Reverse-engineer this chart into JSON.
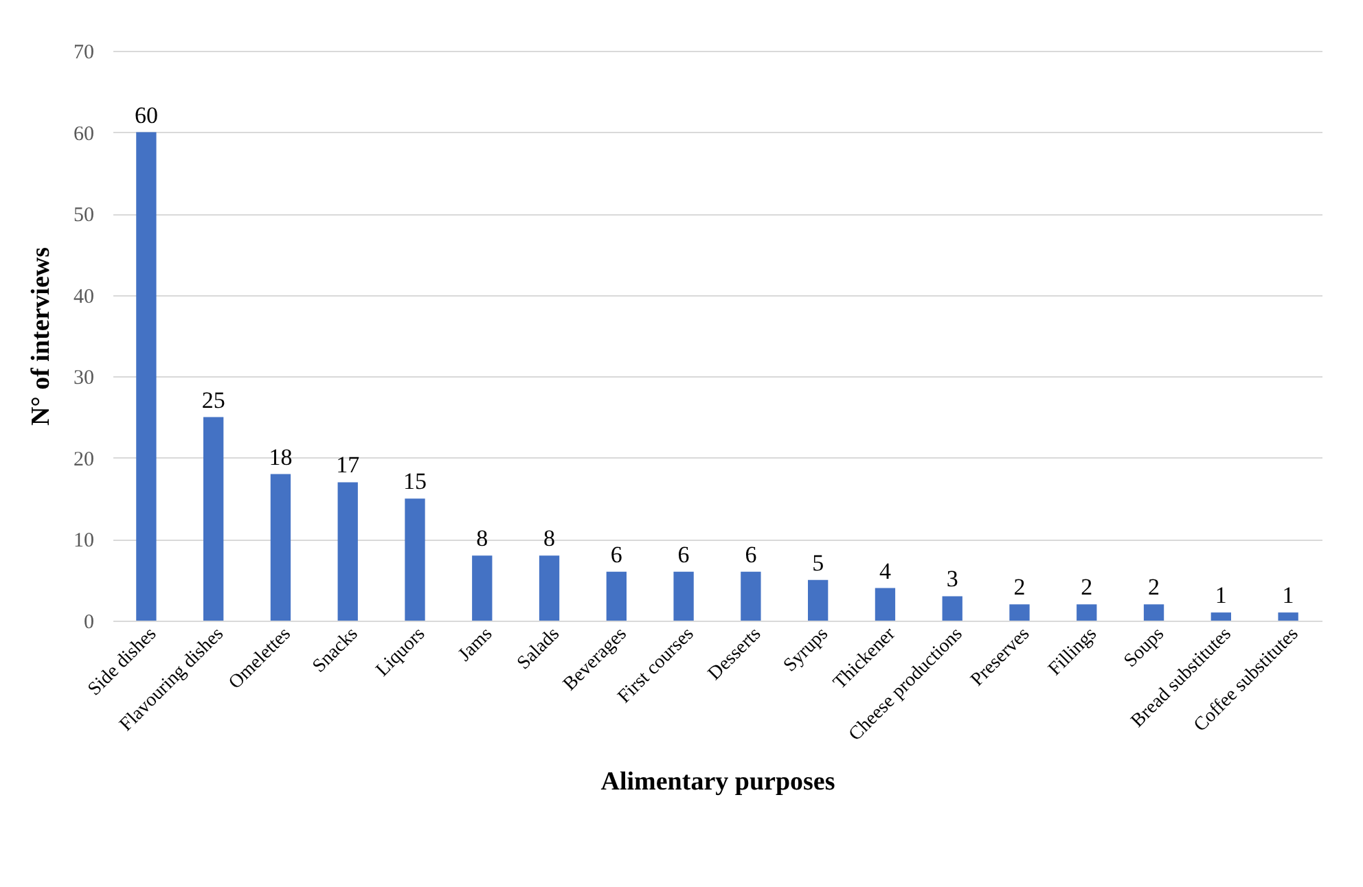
{
  "chart_data": {
    "type": "bar",
    "xlabel": "Alimentary purposes",
    "ylabel": "N° of interviews",
    "categories": [
      "Side dishes",
      "Flavouring dishes",
      "Omelettes",
      "Snacks",
      "Liquors",
      "Jams",
      "Salads",
      "Beverages",
      "First courses",
      "Desserts",
      "Syrups",
      "Thickener",
      "Cheese productions",
      "Preserves",
      "Fillings",
      "Soups",
      "Bread substitutes",
      "Coffee substitutes"
    ],
    "values": [
      60,
      25,
      18,
      17,
      15,
      8,
      8,
      6,
      6,
      6,
      5,
      4,
      3,
      2,
      2,
      2,
      1,
      1
    ],
    "color": "#4472c4",
    "ylim": [
      0,
      70
    ],
    "yticks": [
      0,
      10,
      20,
      30,
      40,
      50,
      60,
      70
    ],
    "grid": "y",
    "data_labels": true
  }
}
